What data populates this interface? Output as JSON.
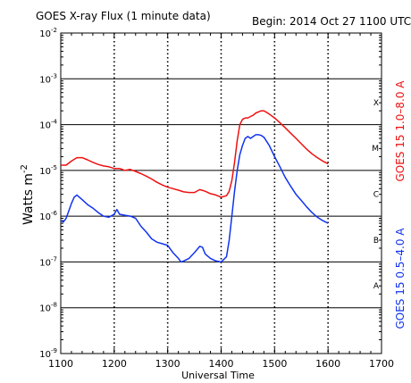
{
  "chart_data": {
    "type": "line",
    "title": "GOES X-ray Flux (1 minute data)",
    "subtitle": "Begin: 2014 Oct 27 1100 UTC",
    "xlabel": "Universal Time",
    "ylabel": "Watts m",
    "ylabel_superscript": "-2",
    "xlim": [
      1100,
      1700
    ],
    "ylim": [
      1e-09,
      0.01
    ],
    "yscale": "log",
    "grid": "horizontal",
    "x_ticks": [
      "1100",
      "1200",
      "1300",
      "1400",
      "1500",
      "1600",
      "1700"
    ],
    "y_ticks": [
      {
        "base": "10",
        "exp": "-2"
      },
      {
        "base": "10",
        "exp": "-3"
      },
      {
        "base": "10",
        "exp": "-4"
      },
      {
        "base": "10",
        "exp": "-5"
      },
      {
        "base": "10",
        "exp": "-6"
      },
      {
        "base": "10",
        "exp": "-7"
      },
      {
        "base": "10",
        "exp": "-8"
      },
      {
        "base": "10",
        "exp": "-9"
      }
    ],
    "flare_classes": [
      "X",
      "M",
      "C",
      "B",
      "A"
    ],
    "series": [
      {
        "name": "GOES 15 1.0–8.0 A",
        "color": "#ee1111",
        "points": [
          [
            1100,
            1.3e-05
          ],
          [
            1110,
            1.3e-05
          ],
          [
            1120,
            1.6e-05
          ],
          [
            1130,
            1.9e-05
          ],
          [
            1140,
            1.9e-05
          ],
          [
            1150,
            1.7e-05
          ],
          [
            1160,
            1.5e-05
          ],
          [
            1170,
            1.35e-05
          ],
          [
            1180,
            1.25e-05
          ],
          [
            1190,
            1.2e-05
          ],
          [
            1200,
            1.1e-05
          ],
          [
            1210,
            1.1e-05
          ],
          [
            1220,
            1e-05
          ],
          [
            1230,
            1.05e-05
          ],
          [
            1240,
            9.5e-06
          ],
          [
            1250,
            8.5e-06
          ],
          [
            1260,
            7.5e-06
          ],
          [
            1270,
            6.5e-06
          ],
          [
            1280,
            5.5e-06
          ],
          [
            1290,
            4.8e-06
          ],
          [
            1300,
            4.3e-06
          ],
          [
            1310,
            4e-06
          ],
          [
            1320,
            3.7e-06
          ],
          [
            1330,
            3.4e-06
          ],
          [
            1340,
            3.3e-06
          ],
          [
            1350,
            3.3e-06
          ],
          [
            1360,
            3.8e-06
          ],
          [
            1370,
            3.5e-06
          ],
          [
            1380,
            3.1e-06
          ],
          [
            1390,
            2.9e-06
          ],
          [
            1400,
            2.6e-06
          ],
          [
            1410,
            2.8e-06
          ],
          [
            1415,
            3.5e-06
          ],
          [
            1420,
            6e-06
          ],
          [
            1425,
            1.5e-05
          ],
          [
            1430,
            4.5e-05
          ],
          [
            1435,
            0.0001
          ],
          [
            1440,
            0.00013
          ],
          [
            1445,
            0.00014
          ],
          [
            1450,
            0.00014
          ],
          [
            1455,
            0.00015
          ],
          [
            1460,
            0.00016
          ],
          [
            1465,
            0.00018
          ],
          [
            1470,
            0.00019
          ],
          [
            1475,
            0.0002
          ],
          [
            1480,
            0.0002
          ],
          [
            1485,
            0.000185
          ],
          [
            1490,
            0.00017
          ],
          [
            1500,
            0.00014
          ],
          [
            1510,
            0.00011
          ],
          [
            1520,
            8.5e-05
          ],
          [
            1530,
            6.5e-05
          ],
          [
            1540,
            5e-05
          ],
          [
            1550,
            3.8e-05
          ],
          [
            1560,
            2.9e-05
          ],
          [
            1570,
            2.3e-05
          ],
          [
            1580,
            1.9e-05
          ],
          [
            1590,
            1.6e-05
          ],
          [
            1600,
            1.4e-05
          ]
        ]
      },
      {
        "name": "GOES 15 0.5–4.0 A",
        "color": "#1133ee",
        "points": [
          [
            1100,
            8e-07
          ],
          [
            1105,
            7.5e-07
          ],
          [
            1110,
            9e-07
          ],
          [
            1115,
            1.3e-06
          ],
          [
            1120,
            1.9e-06
          ],
          [
            1125,
            2.6e-06
          ],
          [
            1130,
            2.9e-06
          ],
          [
            1140,
            2.3e-06
          ],
          [
            1150,
            1.8e-06
          ],
          [
            1160,
            1.5e-06
          ],
          [
            1170,
            1.2e-06
          ],
          [
            1180,
            1e-06
          ],
          [
            1190,
            9.5e-07
          ],
          [
            1200,
            1.1e-06
          ],
          [
            1205,
            1.4e-06
          ],
          [
            1210,
            1.1e-06
          ],
          [
            1220,
            1.05e-06
          ],
          [
            1230,
            1e-06
          ],
          [
            1240,
            9e-07
          ],
          [
            1250,
            6e-07
          ],
          [
            1260,
            4.5e-07
          ],
          [
            1270,
            3.2e-07
          ],
          [
            1280,
            2.7e-07
          ],
          [
            1290,
            2.5e-07
          ],
          [
            1300,
            2.3e-07
          ],
          [
            1310,
            1.6e-07
          ],
          [
            1320,
            1.2e-07
          ],
          [
            1325,
            1e-07
          ],
          [
            1330,
            1.05e-07
          ],
          [
            1340,
            1.2e-07
          ],
          [
            1350,
            1.6e-07
          ],
          [
            1360,
            2.2e-07
          ],
          [
            1365,
            2.1e-07
          ],
          [
            1370,
            1.5e-07
          ],
          [
            1380,
            1.2e-07
          ],
          [
            1390,
            1.05e-07
          ],
          [
            1400,
            1e-07
          ],
          [
            1410,
            1.3e-07
          ],
          [
            1415,
            3e-07
          ],
          [
            1420,
            1e-06
          ],
          [
            1425,
            3.5e-06
          ],
          [
            1430,
            1e-05
          ],
          [
            1435,
            2.2e-05
          ],
          [
            1440,
            3.5e-05
          ],
          [
            1445,
            5e-05
          ],
          [
            1450,
            5.5e-05
          ],
          [
            1455,
            5e-05
          ],
          [
            1460,
            5.5e-05
          ],
          [
            1465,
            6e-05
          ],
          [
            1470,
            6e-05
          ],
          [
            1475,
            5.8e-05
          ],
          [
            1480,
            5.3e-05
          ],
          [
            1490,
            3.5e-05
          ],
          [
            1500,
            2e-05
          ],
          [
            1510,
            1.2e-05
          ],
          [
            1520,
            7e-06
          ],
          [
            1530,
            4.5e-06
          ],
          [
            1540,
            3e-06
          ],
          [
            1550,
            2.2e-06
          ],
          [
            1560,
            1.6e-06
          ],
          [
            1570,
            1.2e-06
          ],
          [
            1580,
            9.5e-07
          ],
          [
            1590,
            8e-07
          ],
          [
            1600,
            7e-07
          ]
        ]
      }
    ]
  }
}
